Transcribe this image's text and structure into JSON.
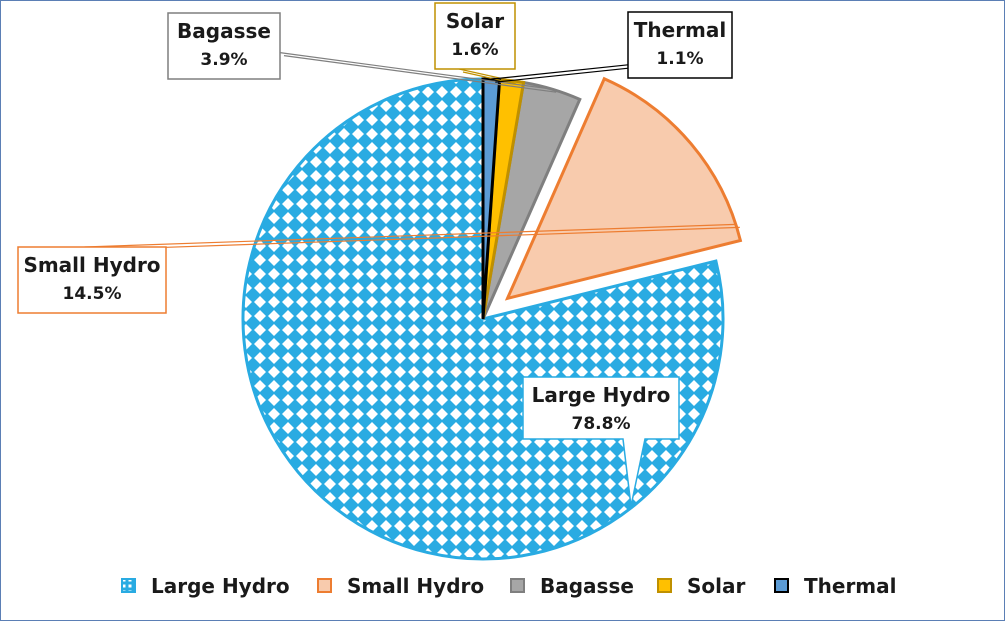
{
  "chart_data": {
    "type": "pie",
    "title": "",
    "start_angle_deg": 0,
    "direction": "counterclockwise",
    "series": [
      {
        "name": "Large Hydro",
        "value": 78.8,
        "label": "78.8%",
        "fill": "#29abe2",
        "stroke": "#29abe2",
        "pattern": "dots",
        "exploded": false
      },
      {
        "name": "Small Hydro",
        "value": 14.5,
        "label": "14.5%",
        "fill": "#f8cbad",
        "stroke": "#ed7d31",
        "pattern": "solid",
        "exploded": true
      },
      {
        "name": "Bagasse",
        "value": 3.9,
        "label": "3.9%",
        "fill": "#a6a6a6",
        "stroke": "#7f7f7f",
        "pattern": "solid",
        "exploded": false
      },
      {
        "name": "Solar",
        "value": 1.6,
        "label": "1.6%",
        "fill": "#ffc000",
        "stroke": "#bf9000",
        "pattern": "solid",
        "exploded": false
      },
      {
        "name": "Thermal",
        "value": 1.1,
        "label": "1.1%",
        "fill": "#5b9bd5",
        "stroke": "#000000",
        "pattern": "solid",
        "exploded": false
      }
    ],
    "legend_position": "bottom"
  }
}
